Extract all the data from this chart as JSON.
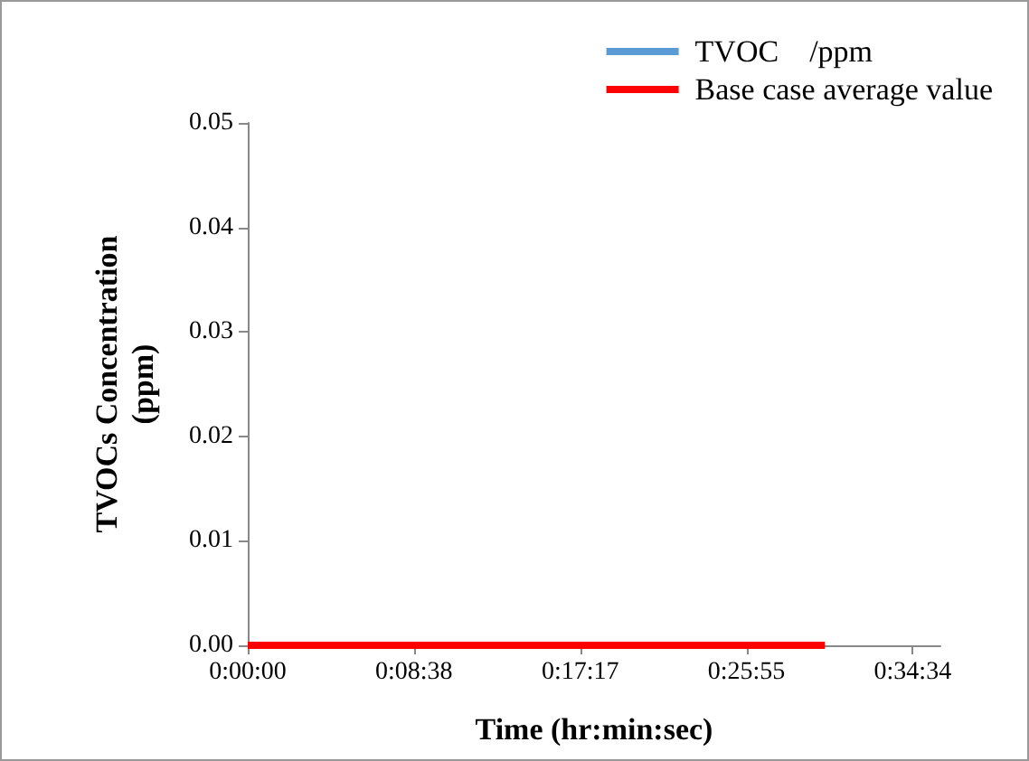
{
  "chart_data": {
    "type": "line",
    "xlabel": "Time (hr:min:sec)",
    "ylabel": "TVOCs Concentration (ppm)",
    "x": [
      0,
      0.5
    ],
    "series": [
      {
        "name": "TVOC　/ppm",
        "color": "#5b9bd5",
        "values": [
          null,
          null
        ]
      },
      {
        "name": "Base case average value",
        "color": "#ff0000",
        "values": [
          0,
          0
        ]
      }
    ],
    "xlim": [
      0,
      0.6
    ],
    "xticks": [
      {
        "value": 0,
        "label": "0:00:00"
      },
      {
        "value": 0.144,
        "label": "0:08:38"
      },
      {
        "value": 0.288,
        "label": "0:17:17"
      },
      {
        "value": 0.432,
        "label": "0:25:55"
      },
      {
        "value": 0.576,
        "label": "0:34:34"
      }
    ],
    "ylim": [
      0,
      0.05
    ],
    "yticks": [
      {
        "value": 0,
        "label": "0.00"
      },
      {
        "value": 0.01,
        "label": "0.01"
      },
      {
        "value": 0.02,
        "label": "0.02"
      },
      {
        "value": 0.03,
        "label": "0.03"
      },
      {
        "value": 0.04,
        "label": "0.04"
      },
      {
        "value": 0.05,
        "label": "0.05"
      }
    ],
    "grid": false,
    "legend": "top right",
    "marker": "none",
    "line_style": "solid"
  }
}
